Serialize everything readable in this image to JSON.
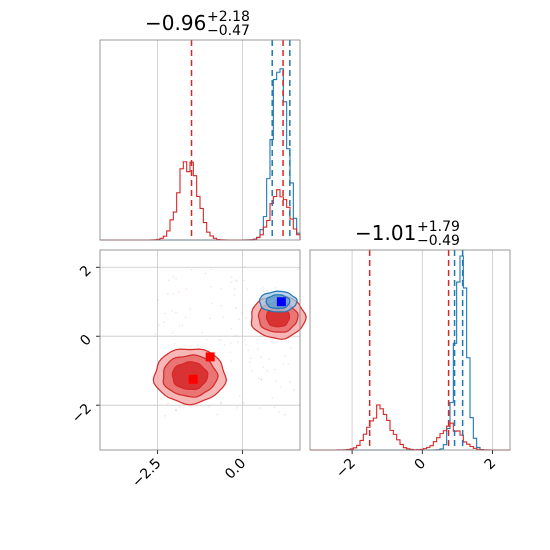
{
  "chart_data": {
    "type": "corner",
    "colors": {
      "blue": "#1f77b4",
      "red": "#d62728",
      "grid": "#c8c8c8",
      "marker_blue": "#0000ff",
      "marker_red": "#ff0000"
    },
    "panels": [
      {
        "id": "hist-p1",
        "type": "histogram",
        "title": {
          "base": "−0.96",
          "sup": "+2.18",
          "sub": "−0.47"
        },
        "xlim": [
          -4.2,
          1.7
        ],
        "series": [
          {
            "name": "blue",
            "color": "#1f77b4",
            "peaks": [
              {
                "center": 1.1,
                "sigma": 0.22,
                "height": 0.92
              }
            ]
          },
          {
            "name": "red",
            "color": "#d62728",
            "peaks": [
              {
                "center": -1.6,
                "sigma": 0.28,
                "height": 0.4
              },
              {
                "center": 1.1,
                "sigma": 0.25,
                "height": 0.26
              }
            ]
          }
        ],
        "vlines": [
          {
            "x": -1.5,
            "color": "#d62728"
          },
          {
            "x": 1.2,
            "color": "#d62728"
          },
          {
            "x": 0.88,
            "color": "#1f77b4"
          },
          {
            "x": 1.4,
            "color": "#1f77b4"
          }
        ],
        "gridlines": [
          -2.5,
          0.0
        ]
      },
      {
        "id": "hist-p2",
        "type": "histogram",
        "title": {
          "base": "−1.01",
          "sup": "+1.79",
          "sub": "−0.49"
        },
        "xlim": [
          -3.2,
          2.5
        ],
        "xticks": [
          -2,
          0,
          2
        ],
        "xtick_labels": [
          "−2",
          "0",
          "2"
        ],
        "series": [
          {
            "name": "blue",
            "color": "#1f77b4",
            "peaks": [
              {
                "center": 1.1,
                "sigma": 0.17,
                "height": 0.92
              }
            ]
          },
          {
            "name": "red",
            "color": "#d62728",
            "peaks": [
              {
                "center": -1.2,
                "sigma": 0.3,
                "height": 0.2
              },
              {
                "center": 0.8,
                "sigma": 0.3,
                "height": 0.12
              }
            ]
          }
        ],
        "vlines": [
          {
            "x": -1.5,
            "color": "#d62728"
          },
          {
            "x": 0.75,
            "color": "#d62728"
          },
          {
            "x": 0.92,
            "color": "#1f77b4"
          },
          {
            "x": 1.15,
            "color": "#1f77b4"
          }
        ],
        "gridlines": [
          -2,
          0,
          2
        ]
      },
      {
        "id": "contour-p1-p2",
        "type": "contour",
        "xlim": [
          -4.2,
          1.7
        ],
        "ylim": [
          -3.3,
          2.5
        ],
        "xticks": [
          -2.5,
          0.0
        ],
        "xtick_labels": [
          "−2.5",
          "0.0"
        ],
        "yticks": [
          -2,
          0,
          2
        ],
        "ytick_labels": [
          "−2",
          "0",
          "2"
        ],
        "blobs": [
          {
            "name": "red",
            "color": "#d62728",
            "center": [
              -1.55,
              -1.15
            ],
            "radii": [
              [
                1.05,
                0.8
              ],
              [
                0.8,
                0.6
              ],
              [
                0.52,
                0.4
              ]
            ]
          },
          {
            "name": "red",
            "color": "#d62728",
            "center": [
              1.05,
              0.55
            ],
            "radii": [
              [
                0.8,
                0.62
              ],
              [
                0.58,
                0.44
              ],
              [
                0.34,
                0.28
              ]
            ]
          },
          {
            "name": "blue",
            "color": "#1f77b4",
            "center": [
              1.05,
              1.0
            ],
            "radii": [
              [
                0.55,
                0.3
              ],
              [
                0.35,
                0.2
              ]
            ]
          }
        ],
        "markers": [
          {
            "x": 1.15,
            "y": 1.0,
            "color": "#0000ff"
          },
          {
            "x": -0.95,
            "y": -0.6,
            "color": "#ff0000"
          },
          {
            "x": -1.45,
            "y": -1.25,
            "color": "#ff0000"
          }
        ],
        "gridlines_x": [
          -2.5,
          0.0
        ],
        "gridlines_y": [
          -2,
          0,
          2
        ]
      }
    ]
  }
}
